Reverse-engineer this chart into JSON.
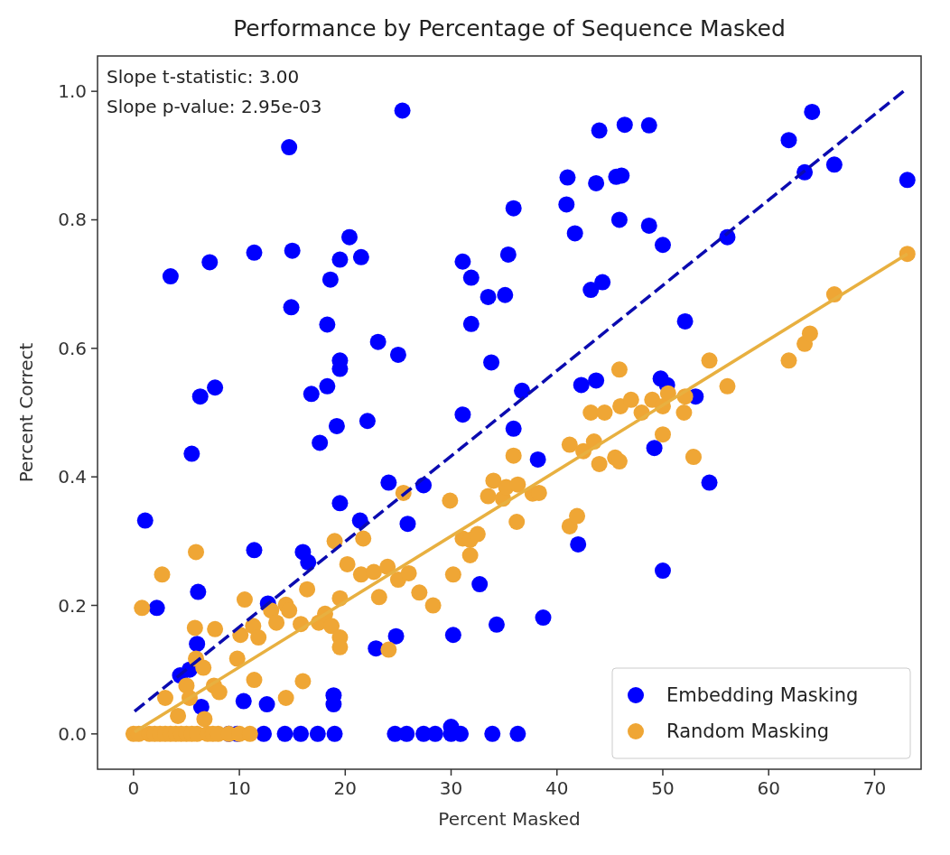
{
  "chart_data": {
    "type": "scatter",
    "title": "Performance by Percentage of Sequence Masked",
    "xlabel": "Percent Masked",
    "ylabel": "Percent Correct",
    "annotations": [
      "Slope t-statistic: 3.00",
      "Slope p-value: 2.95e-03"
    ],
    "xlim": [
      -3.4,
      74.4
    ],
    "xticks": [
      0,
      10,
      20,
      30,
      40,
      50,
      60,
      70
    ],
    "ylim": [
      -0.055,
      1.055
    ],
    "yticks": [
      {
        "value": 0,
        "label": "0.0"
      },
      0.2,
      0.4,
      0.6,
      0.8,
      {
        "value": 1,
        "label": "1.0"
      }
    ],
    "grid": false,
    "legend": "bottom right",
    "marker": "circle",
    "series": [
      {
        "name": "Embedding Masking",
        "type": "scatter",
        "color": "#0000ff",
        "x": [
          1.1,
          2.2,
          3.5,
          5.5,
          6.3,
          7.7,
          7.2,
          6.1,
          6.0,
          4.4,
          5.3,
          6.4,
          10.4,
          12.6,
          11.4,
          11.4,
          12.7,
          14.7,
          15.0,
          14.9,
          16.0,
          16.5,
          16.8,
          17.6,
          18.3,
          18.3,
          18.6,
          18.9,
          18.9,
          19.2,
          19.5,
          19.5,
          19.5,
          19.5,
          20.4,
          21.4,
          21.5,
          22.1,
          22.9,
          23.1,
          24.1,
          24.8,
          25.0,
          25.4,
          25.9,
          27.4,
          30.0,
          30.2,
          31.1,
          31.1,
          31.9,
          31.9,
          32.7,
          33.5,
          33.8,
          34.3,
          35.1,
          35.4,
          35.9,
          35.9,
          36.7,
          38.2,
          38.7,
          40.9,
          41.0,
          41.7,
          42.0,
          42.3,
          43.2,
          43.7,
          43.7,
          44.0,
          44.3,
          45.6,
          45.9,
          46.1,
          46.4,
          48.7,
          48.7,
          49.2,
          49.8,
          50.0,
          50.0,
          50.4,
          52.1,
          53.1,
          54.4,
          56.1,
          61.9,
          63.4,
          64.1,
          66.2,
          73.1,
          9,
          9.8,
          12.3,
          14.3,
          15.8,
          17.4,
          19.0,
          24.7,
          25.8,
          27.4,
          28.5,
          30.0,
          30.9,
          33.9,
          36.3
        ],
        "values": [
          0.332,
          0.196,
          0.712,
          0.436,
          0.525,
          0.539,
          0.734,
          0.221,
          0.14,
          0.091,
          0.1,
          0.042,
          0.051,
          0.046,
          0.286,
          0.749,
          0.203,
          0.913,
          0.752,
          0.664,
          0.283,
          0.267,
          0.529,
          0.453,
          0.541,
          0.637,
          0.707,
          0.06,
          0.046,
          0.479,
          0.359,
          0.568,
          0.581,
          0.738,
          0.773,
          0.332,
          0.742,
          0.487,
          0.133,
          0.61,
          0.391,
          0.152,
          0.59,
          0.97,
          0.327,
          0.387,
          0.011,
          0.154,
          0.497,
          0.735,
          0.71,
          0.638,
          0.233,
          0.68,
          0.578,
          0.17,
          0.683,
          0.746,
          0.818,
          0.475,
          0.534,
          0.427,
          0.181,
          0.824,
          0.866,
          0.779,
          0.295,
          0.543,
          0.691,
          0.55,
          0.857,
          0.939,
          0.703,
          0.867,
          0.8,
          0.869,
          0.948,
          0.947,
          0.791,
          0.445,
          0.553,
          0.761,
          0.254,
          0.543,
          0.642,
          0.525,
          0.391,
          0.773,
          0.924,
          0.874,
          0.968,
          0.886,
          0.862,
          0,
          0,
          0,
          0,
          0,
          0,
          0,
          0,
          0,
          0,
          0,
          0,
          0,
          0,
          0
        ]
      },
      {
        "name": "Random Masking",
        "type": "scatter",
        "color": "#efa635",
        "x": [
          0,
          0.5,
          1.5,
          2,
          2.5,
          3,
          3.5,
          4,
          4.5,
          5,
          5.5,
          6,
          7,
          7.5,
          8,
          9,
          10,
          11,
          0.8,
          2.7,
          3.0,
          4.2,
          5.0,
          5.3,
          5.9,
          5.9,
          5.8,
          6.6,
          6.7,
          7.6,
          8.1,
          7.7,
          9.8,
          10.1,
          10.5,
          11.3,
          11.8,
          11.4,
          13.0,
          13.5,
          14.4,
          14.4,
          14.7,
          15.8,
          16.0,
          16.4,
          17.5,
          18.1,
          18.7,
          19.5,
          19.5,
          19.5,
          19.0,
          20.2,
          21.5,
          21.7,
          22.7,
          23.2,
          24.0,
          24.1,
          25.0,
          25.5,
          26.0,
          27.0,
          28.3,
          29.9,
          30.2,
          31.1,
          31.8,
          31.8,
          32.5,
          33.5,
          34.0,
          34.9,
          35.2,
          35.9,
          36.2,
          36.3,
          37.7,
          38.3,
          41.2,
          41.9,
          41.2,
          42.5,
          43.5,
          44.0,
          45.5,
          45.9,
          43.2,
          44.5,
          45.9,
          46.0,
          47.0,
          48.0,
          49.0,
          50.0,
          50.5,
          50.0,
          52.0,
          52.1,
          52.9,
          54.4,
          56.1,
          61.9,
          63.4,
          63.9,
          66.2,
          73.1
        ],
        "values": [
          0,
          0,
          0,
          0,
          0,
          0,
          0,
          0,
          0,
          0,
          0,
          0,
          0,
          0,
          0,
          0,
          0,
          0,
          0.196,
          0.248,
          0.056,
          0.028,
          0.075,
          0.056,
          0.117,
          0.283,
          0.165,
          0.103,
          0.023,
          0.075,
          0.065,
          0.163,
          0.117,
          0.154,
          0.209,
          0.168,
          0.15,
          0.084,
          0.192,
          0.173,
          0.201,
          0.056,
          0.192,
          0.171,
          0.082,
          0.225,
          0.173,
          0.187,
          0.168,
          0.15,
          0.135,
          0.211,
          0.3,
          0.264,
          0.248,
          0.304,
          0.252,
          0.213,
          0.26,
          0.131,
          0.24,
          0.375,
          0.25,
          0.22,
          0.2,
          0.363,
          0.248,
          0.304,
          0.278,
          0.302,
          0.311,
          0.37,
          0.394,
          0.366,
          0.384,
          0.433,
          0.33,
          0.388,
          0.374,
          0.375,
          0.323,
          0.339,
          0.45,
          0.44,
          0.455,
          0.42,
          0.43,
          0.424,
          0.5,
          0.5,
          0.567,
          0.51,
          0.52,
          0.5,
          0.52,
          0.51,
          0.53,
          0.466,
          0.5,
          0.525,
          0.431,
          0.581,
          0.541,
          0.581,
          0.607,
          0.623,
          0.684,
          0.747
        ]
      },
      {
        "type": "line",
        "marker": "none",
        "color": "#0b0bb0",
        "line_style": "dashed",
        "x": [
          0.1,
          73.1
        ],
        "values": [
          0.035,
          1.005
        ]
      },
      {
        "type": "line",
        "marker": "none",
        "color": "#e8b040",
        "line_style": "solid",
        "x": [
          0.1,
          73.1
        ],
        "values": [
          0.003,
          0.747
        ]
      }
    ]
  }
}
